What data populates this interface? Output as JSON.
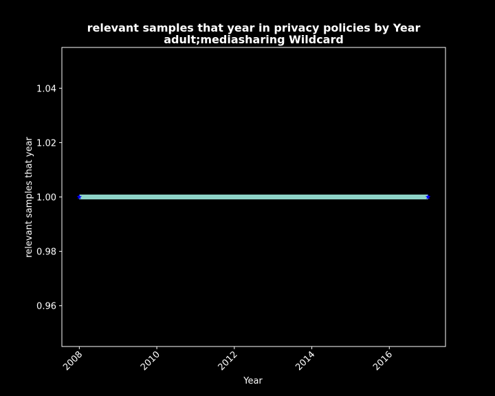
{
  "chart_data": {
    "type": "line",
    "title": "relevant samples that year in privacy policies by Year",
    "subtitle": "adult;mediasharing Wildcard",
    "xlabel": "Year",
    "ylabel": "relevant samples that year",
    "xlim": [
      2007.55,
      2017.45
    ],
    "ylim": [
      0.945,
      1.055
    ],
    "x_ticks": [
      2008,
      2010,
      2012,
      2014,
      2016
    ],
    "x_tick_labels": [
      "2008",
      "2010",
      "2012",
      "2014",
      "2016"
    ],
    "y_ticks": [
      0.96,
      0.98,
      1.0,
      1.02,
      1.04
    ],
    "y_tick_labels": [
      "0.96",
      "0.98",
      "1.00",
      "1.02",
      "1.04"
    ],
    "grid": false,
    "series": [
      {
        "x": [
          2008,
          2017
        ],
        "values": [
          1.0,
          1.0
        ],
        "line_color": "#8dd3c7",
        "marker": "star",
        "marker_color": "#0000ff"
      }
    ],
    "colors": {
      "background": "#000000",
      "axes": "#ffffff",
      "text": "#ffffff"
    }
  }
}
